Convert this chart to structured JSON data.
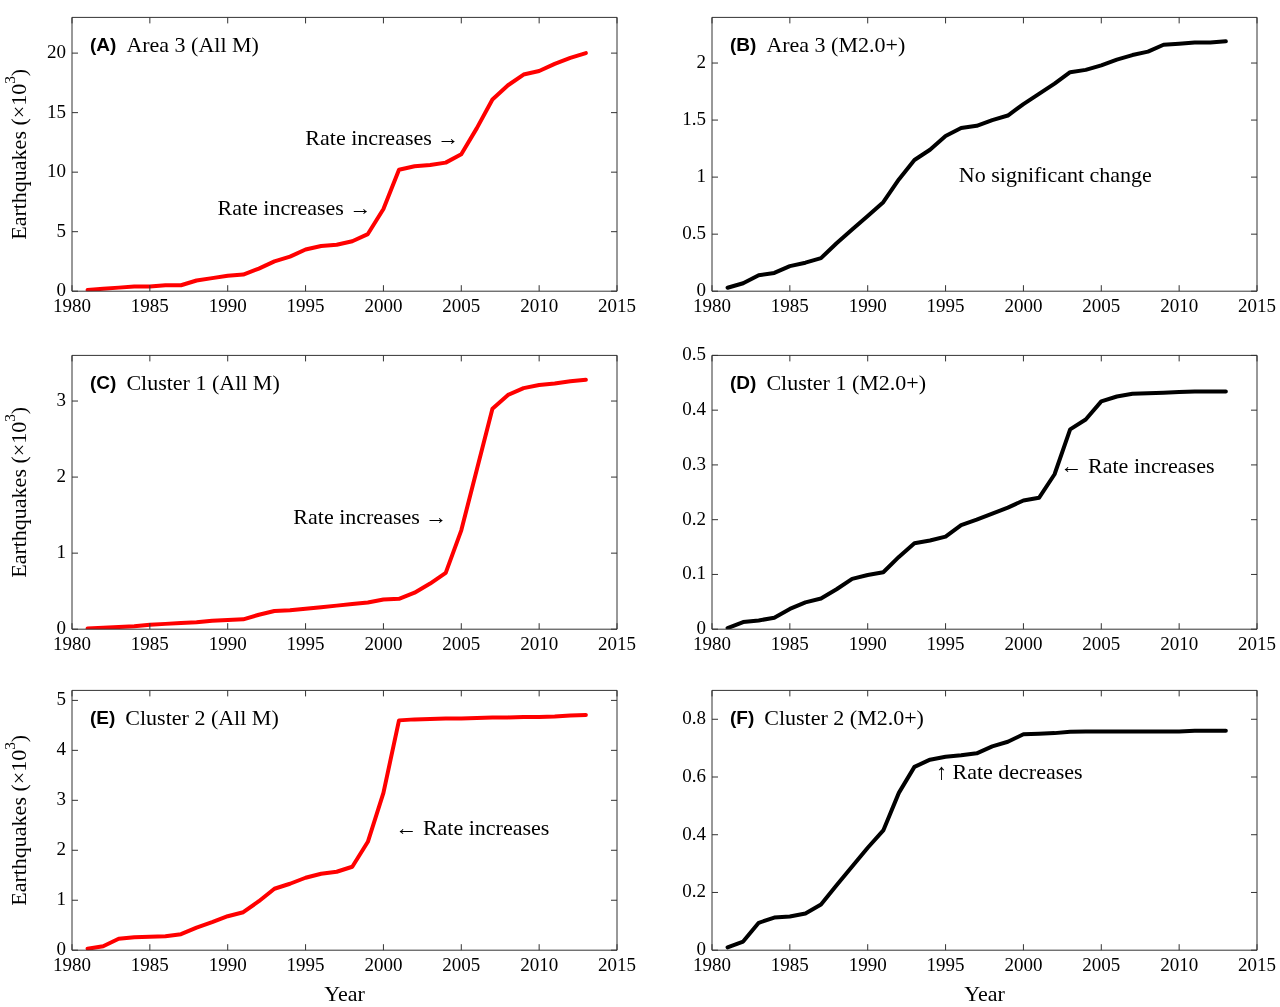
{
  "chart_data": [
    {
      "type": "line",
      "title": "(A) Area 3 (All M)",
      "ylabel": "Earthquakes (×10$^{3}$)",
      "x": [
        1981,
        1982,
        1983,
        1984,
        1985,
        1986,
        1987,
        1988,
        1989,
        1990,
        1991,
        1992,
        1993,
        1994,
        1995,
        1996,
        1997,
        1998,
        1999,
        2000,
        2001,
        2002,
        2003,
        2004,
        2005,
        2006,
        2007,
        2008,
        2009,
        2010,
        2011,
        2012,
        2013
      ],
      "series": [
        {
          "color": "#ff0000",
          "values": [
            0.1,
            0.2,
            0.3,
            0.4,
            0.4,
            0.5,
            0.5,
            0.9,
            1.1,
            1.3,
            1.4,
            1.9,
            2.5,
            2.9,
            3.5,
            3.8,
            3.9,
            4.2,
            4.8,
            6.9,
            10.2,
            10.5,
            10.6,
            10.8,
            11.5,
            13.7,
            16.1,
            17.3,
            18.2,
            18.5,
            19.1,
            19.6,
            20.0
          ]
        }
      ],
      "xlim": [
        1980,
        2015
      ],
      "xticks": [
        1980,
        1985,
        1990,
        1995,
        2000,
        2005,
        2010,
        2015
      ],
      "ylim": [
        0,
        23
      ],
      "yticks": [
        0,
        5,
        10,
        15,
        20
      ],
      "annotations": [
        {
          "text": "Rate increases →",
          "x": 2000,
          "y": 6.9
        },
        {
          "text": "Rate increases →",
          "x": 2005,
          "y": 11.5
        }
      ]
    },
    {
      "type": "line",
      "title": "(B) Area 3 (M2.0+)",
      "x": [
        1981,
        1982,
        1983,
        1984,
        1985,
        1986,
        1987,
        1988,
        1989,
        1990,
        1991,
        1992,
        1993,
        1994,
        1995,
        1996,
        1997,
        1998,
        1999,
        2000,
        2001,
        2002,
        2003,
        2004,
        2005,
        2006,
        2007,
        2008,
        2009,
        2010,
        2011,
        2012,
        2013
      ],
      "series": [
        {
          "color": "#000000",
          "values": [
            0.03,
            0.07,
            0.14,
            0.16,
            0.22,
            0.25,
            0.29,
            0.42,
            0.54,
            0.66,
            0.78,
            0.98,
            1.15,
            1.24,
            1.36,
            1.43,
            1.45,
            1.5,
            1.54,
            1.64,
            1.73,
            1.82,
            1.92,
            1.94,
            1.98,
            2.03,
            2.07,
            2.1,
            2.16,
            2.17,
            2.18,
            2.18,
            2.19
          ]
        }
      ],
      "xlim": [
        1980,
        2015
      ],
      "xticks": [
        1980,
        1985,
        1990,
        1995,
        2000,
        2005,
        2010,
        2015
      ],
      "ylim": [
        0,
        2.4
      ],
      "yticks": [
        0,
        0.5,
        1,
        1.5,
        2
      ],
      "annotations": [
        "No significant change"
      ]
    },
    {
      "type": "line",
      "title": "(C) Cluster 1 (All M)",
      "ylabel": "Earthquakes (×10$^{3}$)",
      "x": [
        1981,
        1982,
        1983,
        1984,
        1985,
        1986,
        1987,
        1988,
        1989,
        1990,
        1991,
        1992,
        1993,
        1994,
        1995,
        1996,
        1997,
        1998,
        1999,
        2000,
        2001,
        2002,
        2003,
        2004,
        2005,
        2006,
        2007,
        2008,
        2009,
        2010,
        2011,
        2012,
        2013
      ],
      "series": [
        {
          "color": "#ff0000",
          "values": [
            0.01,
            0.02,
            0.03,
            0.04,
            0.06,
            0.07,
            0.08,
            0.09,
            0.11,
            0.12,
            0.13,
            0.19,
            0.24,
            0.25,
            0.27,
            0.29,
            0.31,
            0.33,
            0.35,
            0.39,
            0.4,
            0.48,
            0.6,
            0.74,
            1.3,
            2.1,
            2.9,
            3.08,
            3.17,
            3.21,
            3.23,
            3.26,
            3.28
          ]
        }
      ],
      "xlim": [
        1980,
        2015
      ],
      "xticks": [
        1980,
        1985,
        1990,
        1995,
        2000,
        2005,
        2010,
        2015
      ],
      "ylim": [
        0,
        3.6
      ],
      "yticks": [
        0,
        1,
        2,
        3
      ],
      "annotations": [
        {
          "text": "Rate increases →",
          "x": 2005,
          "y": 1.3
        }
      ]
    },
    {
      "type": "line",
      "title": "(D) Cluster 1 (M2.0+)",
      "x": [
        1981,
        1982,
        1983,
        1984,
        1985,
        1986,
        1987,
        1988,
        1989,
        1990,
        1991,
        1992,
        1993,
        1994,
        1995,
        1996,
        1997,
        1998,
        1999,
        2000,
        2001,
        2002,
        2003,
        2004,
        2005,
        2006,
        2007,
        2008,
        2009,
        2010,
        2011,
        2012,
        2013
      ],
      "series": [
        {
          "color": "#000000",
          "values": [
            0.002,
            0.013,
            0.016,
            0.021,
            0.037,
            0.049,
            0.056,
            0.073,
            0.092,
            0.099,
            0.104,
            0.132,
            0.157,
            0.162,
            0.169,
            0.19,
            0.2,
            0.211,
            0.222,
            0.235,
            0.24,
            0.283,
            0.365,
            0.383,
            0.416,
            0.425,
            0.43,
            0.431,
            0.432,
            0.433,
            0.434,
            0.434,
            0.434
          ]
        }
      ],
      "xlim": [
        1980,
        2015
      ],
      "xticks": [
        1980,
        1985,
        1990,
        1995,
        2000,
        2005,
        2010,
        2015
      ],
      "ylim": [
        0,
        0.5
      ],
      "yticks": [
        0,
        0.1,
        0.2,
        0.3,
        0.4,
        0.5
      ],
      "annotations": [
        {
          "text": "← Rate increases",
          "x": 2002,
          "y": 0.283
        }
      ]
    },
    {
      "type": "line",
      "title": "(E) Cluster 2 (All M)",
      "xlabel": "Year",
      "ylabel": "Earthquakes (×10$^{3}$)",
      "x": [
        1981,
        1982,
        1983,
        1984,
        1985,
        1986,
        1987,
        1988,
        1989,
        1990,
        1991,
        1992,
        1993,
        1994,
        1995,
        1996,
        1997,
        1998,
        1999,
        2000,
        2001,
        2002,
        2003,
        2004,
        2005,
        2006,
        2007,
        2008,
        2009,
        2010,
        2011,
        2012,
        2013
      ],
      "series": [
        {
          "color": "#ff0000",
          "values": [
            0.03,
            0.08,
            0.23,
            0.26,
            0.27,
            0.28,
            0.32,
            0.45,
            0.56,
            0.68,
            0.76,
            0.98,
            1.23,
            1.33,
            1.45,
            1.53,
            1.57,
            1.67,
            2.17,
            3.15,
            4.6,
            4.62,
            4.63,
            4.64,
            4.64,
            4.65,
            4.66,
            4.66,
            4.67,
            4.67,
            4.68,
            4.7,
            4.71
          ]
        }
      ],
      "xlim": [
        1980,
        2015
      ],
      "xticks": [
        1980,
        1985,
        1990,
        1995,
        2000,
        2005,
        2010,
        2015
      ],
      "ylim": [
        0,
        5.2
      ],
      "yticks": [
        0,
        1,
        2,
        3,
        4,
        5
      ],
      "annotations": [
        {
          "text": "← Rate increases",
          "x": 2000,
          "y": 3.15
        }
      ]
    },
    {
      "type": "line",
      "title": "(F) Cluster 2 (M2.0+)",
      "xlabel": "Year",
      "x": [
        1981,
        1982,
        1983,
        1984,
        1985,
        1986,
        1987,
        1988,
        1989,
        1990,
        1991,
        1992,
        1993,
        1994,
        1995,
        1996,
        1997,
        1998,
        1999,
        2000,
        2001,
        2002,
        2003,
        2004,
        2005,
        2006,
        2007,
        2008,
        2009,
        2010,
        2011,
        2012,
        2013
      ],
      "series": [
        {
          "color": "#000000",
          "values": [
            0.01,
            0.03,
            0.095,
            0.113,
            0.117,
            0.127,
            0.158,
            0.225,
            0.29,
            0.355,
            0.415,
            0.545,
            0.635,
            0.66,
            0.67,
            0.675,
            0.682,
            0.706,
            0.722,
            0.748,
            0.75,
            0.752,
            0.757,
            0.758,
            0.758,
            0.758,
            0.758,
            0.758,
            0.758,
            0.758,
            0.76,
            0.76,
            0.76
          ]
        }
      ],
      "xlim": [
        1980,
        2015
      ],
      "xticks": [
        1980,
        1985,
        1990,
        1995,
        2000,
        2005,
        2010,
        2015
      ],
      "ylim": [
        0,
        0.9
      ],
      "yticks": [
        0,
        0.2,
        0.4,
        0.6,
        0.8
      ],
      "annotations": [
        {
          "text": "↑ Rate decreases",
          "x": 1994,
          "y": 0.66
        }
      ]
    }
  ]
}
